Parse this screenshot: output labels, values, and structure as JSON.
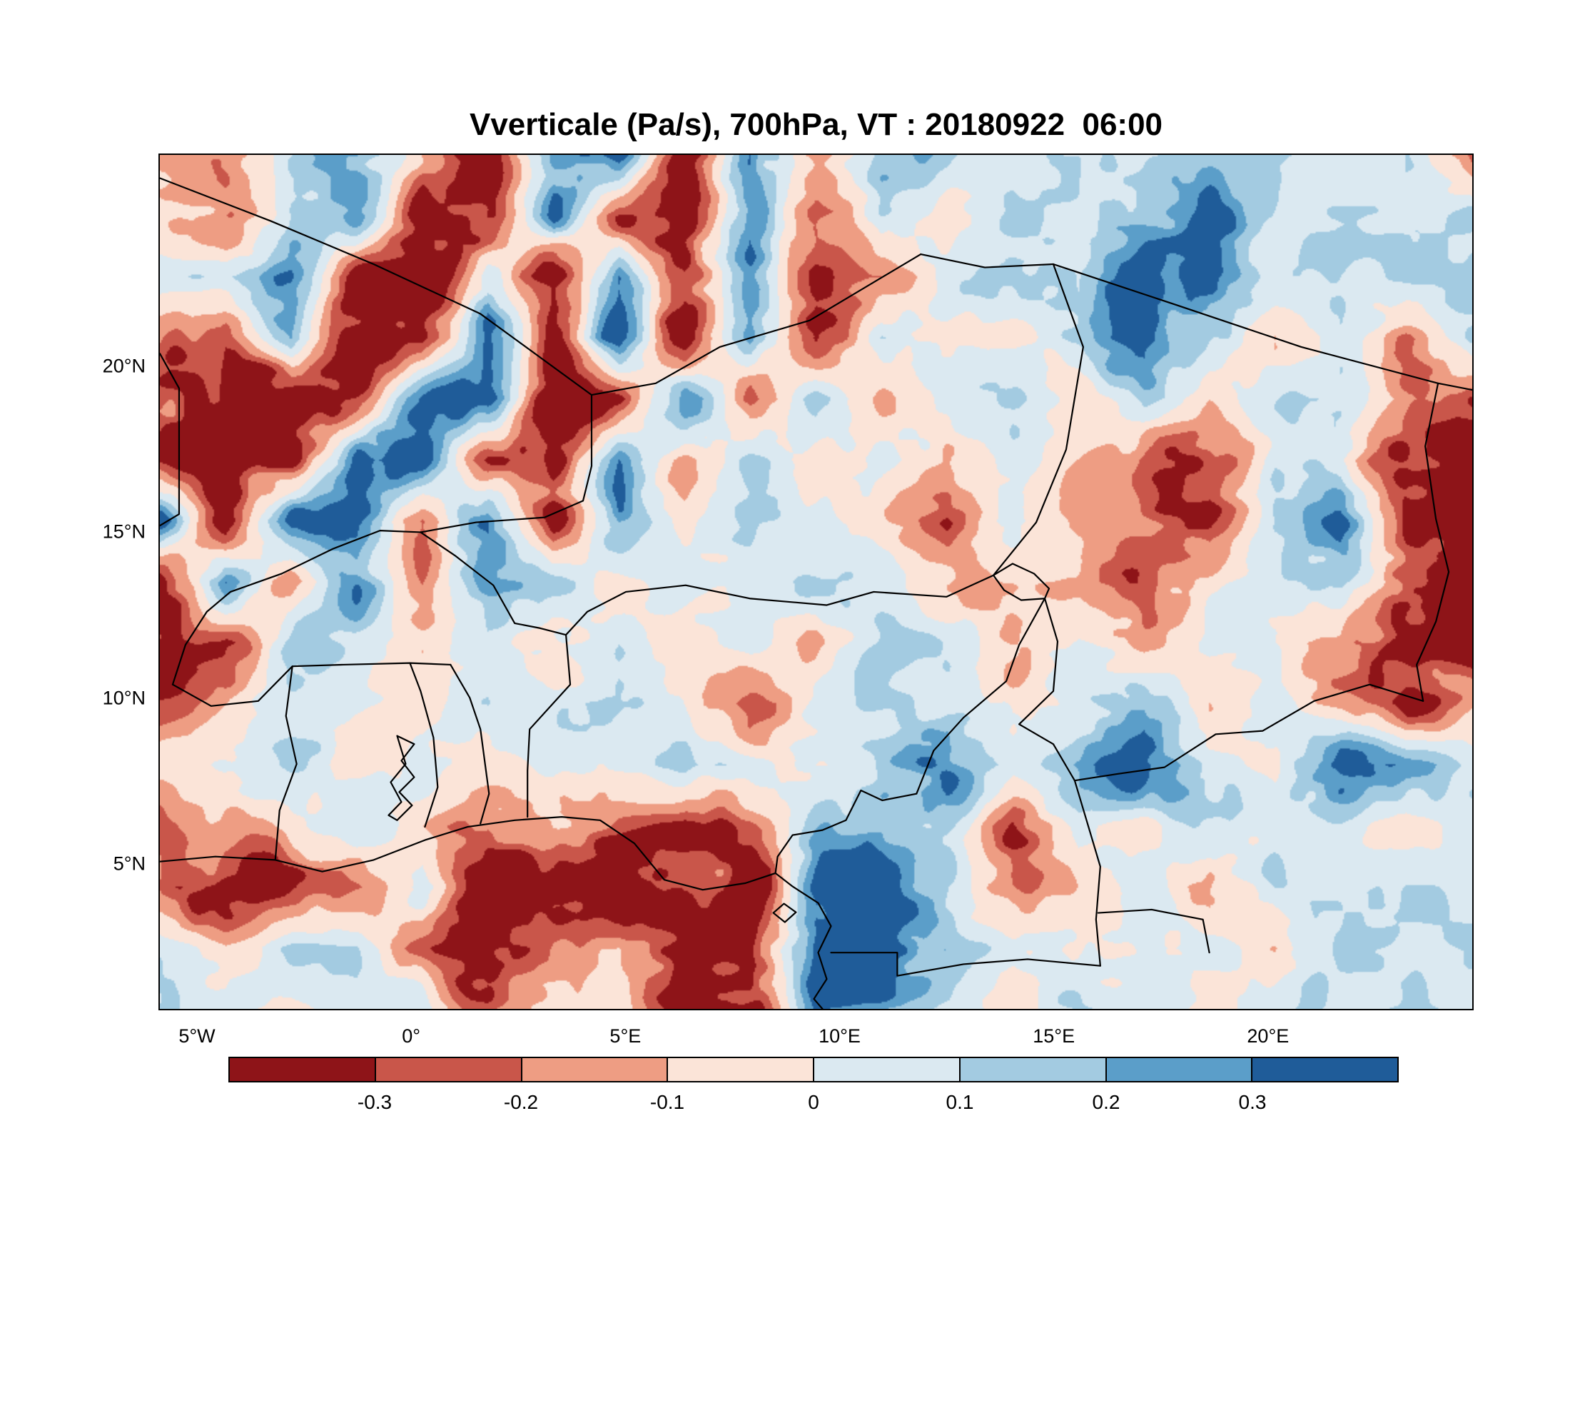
{
  "chart_data": {
    "type": "heatmap",
    "title": "Vverticale (Pa/s), 700hPa, VT : 20180922  06:00",
    "variable": "Vverticale",
    "units": "Pa/s",
    "level": "700hPa",
    "valid_time": "20180922 06:00",
    "x_axis": {
      "range": [
        -5.9,
        24.8
      ],
      "ticks": [
        {
          "label": "5°W",
          "lon": -5
        },
        {
          "label": "0°",
          "lon": 0
        },
        {
          "label": "5°E",
          "lon": 5
        },
        {
          "label": "10°E",
          "lon": 10
        },
        {
          "label": "15°E",
          "lon": 15
        },
        {
          "label": "20°E",
          "lon": 20
        }
      ]
    },
    "y_axis": {
      "range": [
        0.6,
        26.4
      ],
      "ticks": [
        {
          "label": "20°N",
          "lat": 20
        },
        {
          "label": "15°N",
          "lat": 15
        },
        {
          "label": "10°N",
          "lat": 10
        },
        {
          "label": "5°N",
          "lat": 5
        }
      ]
    },
    "colorbar": {
      "levels": [
        -0.3,
        -0.2,
        -0.1,
        0,
        0.1,
        0.2,
        0.3
      ],
      "tick_labels": [
        "-0.3",
        "-0.2",
        "-0.1",
        "0",
        "0.1",
        "0.2",
        "0.3"
      ],
      "colors": [
        "#8e1418",
        "#c9564a",
        "#ee9d83",
        "#fbe4d8",
        "#dbe9f1",
        "#a3cbe1",
        "#5b9ec9",
        "#1f5c99"
      ]
    },
    "grid": {
      "lon_min": -5.9,
      "lon_max": 24.8,
      "lat_top": 26.4,
      "lat_bottom": 0.6,
      "ncols": 21,
      "nrows": 15,
      "values": [
        [
          -0.15,
          -0.2,
          0.1,
          0.3,
          -0.1,
          -0.35,
          0.25,
          0.4,
          -0.45,
          0.3,
          -0.2,
          0.1,
          0.15,
          0.05,
          0.1,
          0.05,
          0.15,
          0.1,
          0.05,
          0.1,
          -0.25
        ],
        [
          -0.1,
          -0.3,
          0.1,
          0.35,
          -0.4,
          -0.45,
          0.3,
          -0.3,
          -0.45,
          0.35,
          -0.35,
          0.15,
          -0.05,
          0.1,
          0.05,
          0.2,
          0.35,
          0.05,
          0.1,
          0.05,
          0.1
        ],
        [
          0.05,
          0.1,
          0.3,
          -0.35,
          -0.45,
          0.1,
          -0.45,
          0.35,
          -0.45,
          0.3,
          -0.4,
          -0.15,
          0.05,
          0.1,
          0.05,
          0.45,
          0.25,
          0.05,
          0.1,
          0.15,
          0.1
        ],
        [
          -0.2,
          -0.35,
          0.2,
          -0.45,
          -0.4,
          0.35,
          -0.35,
          0.4,
          -0.45,
          0.3,
          -0.4,
          0.1,
          0.05,
          -0.05,
          0.1,
          0.45,
          0.15,
          -0.1,
          0.05,
          -0.2,
          0.1
        ],
        [
          -0.3,
          -0.45,
          -0.45,
          -0.35,
          0.35,
          0.4,
          -0.45,
          -0.3,
          0.35,
          -0.3,
          0.2,
          -0.1,
          0.05,
          0.1,
          -0.05,
          0.15,
          -0.1,
          0.05,
          0.15,
          -0.15,
          -0.3
        ],
        [
          -0.45,
          -0.45,
          -0.4,
          0.3,
          0.35,
          -0.35,
          -0.45,
          0.3,
          -0.2,
          0.15,
          -0.1,
          0.05,
          -0.15,
          0.05,
          -0.1,
          -0.25,
          -0.35,
          0.1,
          0.05,
          -0.4,
          -0.45
        ],
        [
          0.35,
          -0.4,
          0.35,
          0.3,
          -0.25,
          0.35,
          -0.3,
          0.25,
          -0.1,
          0.1,
          0.05,
          -0.05,
          -0.2,
          0.1,
          -0.1,
          -0.2,
          -0.3,
          0.05,
          0.3,
          -0.35,
          -0.45
        ],
        [
          -0.45,
          0.3,
          -0.2,
          0.3,
          -0.15,
          0.25,
          0.1,
          -0.05,
          0.1,
          0.05,
          0.1,
          0.05,
          -0.05,
          -0.15,
          -0.1,
          -0.25,
          -0.1,
          0.1,
          0.2,
          -0.3,
          -0.4
        ],
        [
          -0.45,
          -0.35,
          0.2,
          0.1,
          -0.05,
          0.05,
          -0.1,
          0.05,
          -0.05,
          0.1,
          -0.1,
          0.2,
          0.05,
          -0.1,
          0.05,
          -0.15,
          0.05,
          -0.05,
          -0.2,
          -0.45,
          -0.45
        ],
        [
          -0.25,
          -0.1,
          0.1,
          0.05,
          -0.05,
          0.1,
          0.05,
          0.15,
          -0.05,
          -0.3,
          0.05,
          0.15,
          0.1,
          -0.05,
          0.05,
          0.2,
          -0.1,
          0.05,
          -0.15,
          -0.35,
          -0.1
        ],
        [
          -0.1,
          0.05,
          0.1,
          -0.05,
          0.05,
          -0.1,
          0.05,
          -0.05,
          0.1,
          0.05,
          -0.05,
          0.1,
          0.3,
          0.05,
          0.2,
          0.45,
          0.1,
          -0.05,
          0.4,
          0.2,
          0.1
        ],
        [
          -0.2,
          -0.2,
          -0.05,
          0.1,
          -0.1,
          -0.2,
          -0.1,
          -0.15,
          -0.3,
          -0.2,
          0.1,
          0.25,
          0.15,
          -0.25,
          0.05,
          -0.1,
          0.15,
          0.05,
          0.1,
          -0.05,
          0.1
        ],
        [
          -0.15,
          -0.45,
          -0.4,
          -0.2,
          0.1,
          -0.45,
          -0.35,
          -0.45,
          -0.3,
          -0.45,
          0.3,
          0.4,
          0.1,
          -0.3,
          -0.1,
          0.05,
          -0.2,
          0.1,
          0.05,
          0.1,
          0.05
        ],
        [
          0.05,
          -0.1,
          0.1,
          0.05,
          -0.2,
          -0.45,
          -0.25,
          -0.1,
          -0.45,
          -0.4,
          0.35,
          0.45,
          0.15,
          0.05,
          -0.05,
          0.1,
          0.05,
          -0.05,
          0.1,
          0.05,
          0.1
        ],
        [
          0.1,
          0.05,
          -0.05,
          0.1,
          0.05,
          -0.25,
          -0.1,
          -0.05,
          -0.4,
          -0.45,
          0.3,
          0.2,
          0.05,
          -0.05,
          0.1,
          0.05,
          -0.05,
          0.1,
          0.05,
          0.1,
          0.05
        ]
      ]
    },
    "borders": [
      {
        "name": "coastline",
        "points": [
          [
            -5.9,
            5.05
          ],
          [
            -4.6,
            5.2
          ],
          [
            -3.2,
            5.1
          ],
          [
            -2.1,
            4.75
          ],
          [
            -0.9,
            5.1
          ],
          [
            0.3,
            5.7
          ],
          [
            1.3,
            6.1
          ],
          [
            2.4,
            6.3
          ],
          [
            3.5,
            6.4
          ],
          [
            4.4,
            6.3
          ],
          [
            5.2,
            5.6
          ],
          [
            5.9,
            4.5
          ],
          [
            6.8,
            4.2
          ],
          [
            7.8,
            4.4
          ],
          [
            8.5,
            4.7
          ],
          [
            8.9,
            4.3
          ],
          [
            9.5,
            3.8
          ],
          [
            9.8,
            3.1
          ],
          [
            9.5,
            2.3
          ],
          [
            9.7,
            1.5
          ],
          [
            9.4,
            0.9
          ],
          [
            9.6,
            0.6
          ]
        ]
      },
      {
        "name": "mali-algeria",
        "points": [
          [
            -5.9,
            25.7
          ],
          [
            -3.3,
            24.4
          ],
          [
            -0.9,
            23.1
          ],
          [
            1.6,
            21.6
          ],
          [
            4.2,
            19.15
          ]
        ]
      },
      {
        "name": "algeria-niger",
        "points": [
          [
            4.2,
            19.15
          ],
          [
            5.7,
            19.5
          ],
          [
            7.2,
            20.6
          ],
          [
            9.3,
            21.4
          ],
          [
            11.9,
            23.4
          ]
        ]
      },
      {
        "name": "niger-libya",
        "points": [
          [
            11.9,
            23.4
          ],
          [
            13.4,
            23.0
          ],
          [
            15.0,
            23.1
          ]
        ]
      },
      {
        "name": "libya-chad",
        "points": [
          [
            15.0,
            23.1
          ],
          [
            17.8,
            21.9
          ],
          [
            20.8,
            20.6
          ],
          [
            24.0,
            19.5
          ],
          [
            24.8,
            19.3
          ]
        ]
      },
      {
        "name": "chad-sudan",
        "points": [
          [
            24.0,
            19.5
          ],
          [
            23.7,
            17.6
          ],
          [
            23.95,
            15.4
          ],
          [
            24.25,
            13.8
          ],
          [
            23.95,
            12.3
          ],
          [
            23.5,
            11.0
          ],
          [
            23.65,
            9.9
          ]
        ]
      },
      {
        "name": "chad-car",
        "points": [
          [
            23.65,
            9.9
          ],
          [
            22.4,
            10.4
          ],
          [
            21.1,
            9.9
          ],
          [
            19.9,
            9.0
          ],
          [
            18.8,
            8.9
          ],
          [
            17.6,
            7.9
          ],
          [
            16.5,
            7.7
          ],
          [
            15.5,
            7.5
          ]
        ]
      },
      {
        "name": "niger-chad",
        "points": [
          [
            15.0,
            23.1
          ],
          [
            15.7,
            20.6
          ],
          [
            15.3,
            17.5
          ],
          [
            14.6,
            15.3
          ],
          [
            13.6,
            13.7
          ]
        ]
      },
      {
        "name": "cameroon-chad",
        "points": [
          [
            14.8,
            13.0
          ],
          [
            15.1,
            11.7
          ],
          [
            15.0,
            10.2
          ],
          [
            14.2,
            9.2
          ],
          [
            15.0,
            8.6
          ],
          [
            15.5,
            7.5
          ]
        ]
      },
      {
        "name": "lake-chad",
        "points": [
          [
            13.6,
            13.7
          ],
          [
            14.05,
            14.05
          ],
          [
            14.55,
            13.75
          ],
          [
            14.9,
            13.3
          ],
          [
            14.8,
            13.0
          ],
          [
            14.25,
            12.95
          ],
          [
            13.85,
            13.25
          ],
          [
            13.6,
            13.7
          ]
        ]
      },
      {
        "name": "niger-nigeria",
        "points": [
          [
            3.6,
            11.9
          ],
          [
            4.1,
            12.6
          ],
          [
            5.0,
            13.2
          ],
          [
            6.4,
            13.4
          ],
          [
            7.9,
            13.0
          ],
          [
            9.7,
            12.8
          ],
          [
            10.8,
            13.2
          ],
          [
            12.5,
            13.05
          ],
          [
            13.6,
            13.7
          ]
        ]
      },
      {
        "name": "nigeria-cameroon",
        "points": [
          [
            14.8,
            13.0
          ],
          [
            14.2,
            11.6
          ],
          [
            13.9,
            10.5
          ],
          [
            12.9,
            9.4
          ],
          [
            12.2,
            8.4
          ],
          [
            11.8,
            7.1
          ],
          [
            11.0,
            6.9
          ],
          [
            10.5,
            7.2
          ],
          [
            10.15,
            6.3
          ],
          [
            9.6,
            6.0
          ],
          [
            8.9,
            5.85
          ],
          [
            8.55,
            5.2
          ],
          [
            8.5,
            4.7
          ]
        ]
      },
      {
        "name": "benin-nigeria",
        "points": [
          [
            3.6,
            11.9
          ],
          [
            3.7,
            10.4
          ],
          [
            2.75,
            9.05
          ],
          [
            2.7,
            7.8
          ],
          [
            2.7,
            6.4
          ]
        ]
      },
      {
        "name": "burkina-niger-benin",
        "points": [
          [
            0.2,
            15.0
          ],
          [
            1.0,
            14.3
          ],
          [
            1.9,
            13.4
          ],
          [
            2.4,
            12.25
          ],
          [
            3.0,
            12.1
          ],
          [
            3.6,
            11.9
          ]
        ]
      },
      {
        "name": "burkina-south",
        "points": [
          [
            -5.6,
            10.4
          ],
          [
            -4.7,
            9.75
          ],
          [
            -3.6,
            9.9
          ],
          [
            -2.8,
            10.95
          ],
          [
            -1.6,
            11.0
          ],
          [
            -0.05,
            11.05
          ],
          [
            0.9,
            11.0
          ]
        ]
      },
      {
        "name": "burkina-mali",
        "points": [
          [
            -5.6,
            10.4
          ],
          [
            -5.3,
            11.6
          ],
          [
            -4.8,
            12.6
          ],
          [
            -4.25,
            13.2
          ],
          [
            -3.05,
            13.75
          ],
          [
            -1.85,
            14.5
          ],
          [
            -0.75,
            15.05
          ],
          [
            0.2,
            15.0
          ]
        ]
      },
      {
        "name": "mali-niger",
        "points": [
          [
            0.2,
            15.0
          ],
          [
            1.5,
            15.3
          ],
          [
            3.1,
            15.45
          ],
          [
            4.0,
            15.95
          ],
          [
            4.2,
            17.0
          ],
          [
            4.2,
            19.15
          ]
        ]
      },
      {
        "name": "ghana-cote-divoire",
        "points": [
          [
            -3.2,
            5.1
          ],
          [
            -3.1,
            6.6
          ],
          [
            -2.7,
            8.0
          ],
          [
            -2.95,
            9.45
          ],
          [
            -2.8,
            10.95
          ]
        ]
      },
      {
        "name": "ghana-togo",
        "points": [
          [
            0.3,
            6.1
          ],
          [
            0.6,
            7.3
          ],
          [
            0.5,
            8.8
          ],
          [
            0.2,
            10.2
          ],
          [
            -0.05,
            11.05
          ]
        ]
      },
      {
        "name": "togo-benin",
        "points": [
          [
            1.6,
            6.2
          ],
          [
            1.8,
            7.1
          ],
          [
            1.6,
            9.05
          ],
          [
            1.35,
            10.0
          ],
          [
            0.9,
            11.0
          ]
        ]
      },
      {
        "name": "cameroon-south",
        "points": [
          [
            9.8,
            2.3
          ],
          [
            11.35,
            2.3
          ],
          [
            11.35,
            1.6
          ],
          [
            12.9,
            1.95
          ],
          [
            14.4,
            2.1
          ],
          [
            16.1,
            1.9
          ]
        ]
      },
      {
        "name": "cameroon-car",
        "points": [
          [
            16.1,
            1.9
          ],
          [
            16.0,
            3.3
          ],
          [
            16.1,
            4.9
          ],
          [
            15.8,
            6.2
          ],
          [
            15.5,
            7.5
          ]
        ]
      },
      {
        "name": "car-congo",
        "points": [
          [
            16.05,
            3.5
          ],
          [
            17.3,
            3.6
          ],
          [
            18.5,
            3.3
          ],
          [
            18.65,
            2.3
          ]
        ]
      },
      {
        "name": "bioko-island",
        "points": [
          [
            8.45,
            3.5
          ],
          [
            8.7,
            3.78
          ],
          [
            8.98,
            3.52
          ],
          [
            8.72,
            3.22
          ],
          [
            8.45,
            3.5
          ]
        ]
      },
      {
        "name": "lake-volta",
        "points": [
          [
            -0.35,
            6.3
          ],
          [
            0.0,
            6.75
          ],
          [
            -0.3,
            7.15
          ],
          [
            0.05,
            7.6
          ],
          [
            -0.25,
            8.1
          ],
          [
            0.05,
            8.6
          ],
          [
            -0.35,
            8.85
          ],
          [
            -0.15,
            8.0
          ],
          [
            -0.5,
            7.45
          ],
          [
            -0.25,
            6.85
          ],
          [
            -0.55,
            6.45
          ],
          [
            -0.35,
            6.3
          ]
        ]
      },
      {
        "name": "mauritania-mali",
        "points": [
          [
            -5.9,
            15.2
          ],
          [
            -5.45,
            15.55
          ],
          [
            -5.45,
            19.35
          ],
          [
            -5.9,
            20.4
          ]
        ]
      }
    ]
  }
}
